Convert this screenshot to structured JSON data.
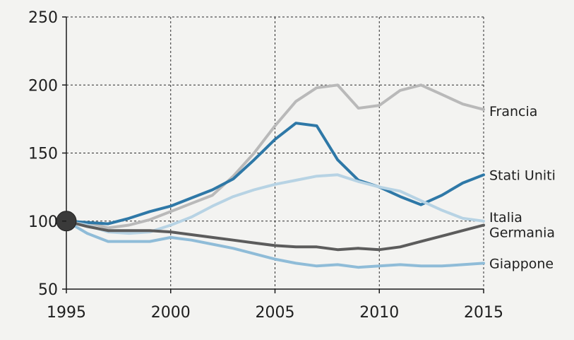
{
  "chart_data": {
    "type": "line",
    "title": "",
    "xlabel": "",
    "ylabel": "",
    "xlim": [
      1995,
      2015
    ],
    "ylim": [
      50,
      250
    ],
    "x_ticks": [
      1995,
      2000,
      2005,
      2010,
      2015
    ],
    "y_ticks": [
      50,
      100,
      150,
      200,
      250
    ],
    "grid": true,
    "start_marker": {
      "x": 1995,
      "y": 100,
      "color": "#3a3a3a"
    },
    "series": [
      {
        "name": "Francia",
        "color": "#b9b9b9",
        "points": [
          [
            1995,
            100
          ],
          [
            1996,
            99
          ],
          [
            1997,
            95
          ],
          [
            1998,
            97
          ],
          [
            1999,
            101
          ],
          [
            2000,
            107
          ],
          [
            2001,
            113
          ],
          [
            2002,
            119
          ],
          [
            2003,
            133
          ],
          [
            2004,
            150
          ],
          [
            2005,
            170
          ],
          [
            2006,
            188
          ],
          [
            2007,
            198
          ],
          [
            2008,
            200
          ],
          [
            2009,
            183
          ],
          [
            2010,
            185
          ],
          [
            2011,
            196
          ],
          [
            2012,
            200
          ],
          [
            2013,
            193
          ],
          [
            2014,
            186
          ],
          [
            2015,
            182
          ]
        ]
      },
      {
        "name": "Stati Uniti",
        "color": "#2e78a7",
        "points": [
          [
            1995,
            100
          ],
          [
            1996,
            99
          ],
          [
            1997,
            98
          ],
          [
            1998,
            102
          ],
          [
            1999,
            107
          ],
          [
            2000,
            111
          ],
          [
            2001,
            117
          ],
          [
            2002,
            123
          ],
          [
            2003,
            131
          ],
          [
            2004,
            145
          ],
          [
            2005,
            160
          ],
          [
            2006,
            172
          ],
          [
            2007,
            170
          ],
          [
            2008,
            145
          ],
          [
            2009,
            130
          ],
          [
            2010,
            125
          ],
          [
            2011,
            118
          ],
          [
            2012,
            112
          ],
          [
            2013,
            119
          ],
          [
            2014,
            128
          ],
          [
            2015,
            134
          ]
        ]
      },
      {
        "name": "Italia",
        "color": "#b7d3e4",
        "points": [
          [
            1995,
            100
          ],
          [
            1996,
            97
          ],
          [
            1997,
            92
          ],
          [
            1998,
            91
          ],
          [
            1999,
            92
          ],
          [
            2000,
            97
          ],
          [
            2001,
            103
          ],
          [
            2002,
            111
          ],
          [
            2003,
            118
          ],
          [
            2004,
            123
          ],
          [
            2005,
            127
          ],
          [
            2006,
            130
          ],
          [
            2007,
            133
          ],
          [
            2008,
            134
          ],
          [
            2009,
            129
          ],
          [
            2010,
            125
          ],
          [
            2011,
            122
          ],
          [
            2012,
            115
          ],
          [
            2013,
            108
          ],
          [
            2014,
            102
          ],
          [
            2015,
            100
          ]
        ]
      },
      {
        "name": "Germania",
        "color": "#5c5c5c",
        "points": [
          [
            1995,
            100
          ],
          [
            1996,
            96
          ],
          [
            1997,
            93
          ],
          [
            1998,
            93
          ],
          [
            1999,
            93
          ],
          [
            2000,
            92
          ],
          [
            2001,
            90
          ],
          [
            2002,
            88
          ],
          [
            2003,
            86
          ],
          [
            2004,
            84
          ],
          [
            2005,
            82
          ],
          [
            2006,
            81
          ],
          [
            2007,
            81
          ],
          [
            2008,
            79
          ],
          [
            2009,
            80
          ],
          [
            2010,
            79
          ],
          [
            2011,
            81
          ],
          [
            2012,
            85
          ],
          [
            2013,
            89
          ],
          [
            2014,
            93
          ],
          [
            2015,
            97
          ]
        ]
      },
      {
        "name": "Giappone",
        "color": "#8fbcd8",
        "points": [
          [
            1995,
            100
          ],
          [
            1996,
            91
          ],
          [
            1997,
            85
          ],
          [
            1998,
            85
          ],
          [
            1999,
            85
          ],
          [
            2000,
            88
          ],
          [
            2001,
            86
          ],
          [
            2002,
            83
          ],
          [
            2003,
            80
          ],
          [
            2004,
            76
          ],
          [
            2005,
            72
          ],
          [
            2006,
            69
          ],
          [
            2007,
            67
          ],
          [
            2008,
            68
          ],
          [
            2009,
            66
          ],
          [
            2010,
            67
          ],
          [
            2011,
            68
          ],
          [
            2012,
            67
          ],
          [
            2013,
            67
          ],
          [
            2014,
            68
          ],
          [
            2015,
            69
          ]
        ]
      }
    ]
  }
}
